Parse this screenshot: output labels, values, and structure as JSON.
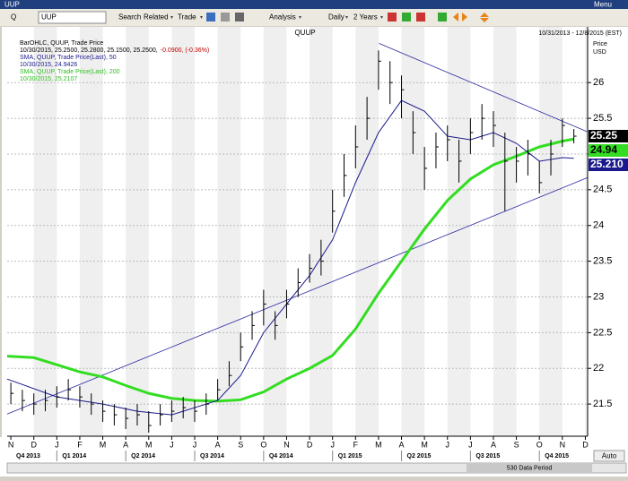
{
  "window": {
    "title": "UUP",
    "menu": "Menu"
  },
  "toolbar": {
    "symbol_prefix": "Q",
    "symbol": "UUP",
    "buttons": [
      "Search",
      "Related",
      "Trade",
      "Analysis",
      "Daily",
      "2 Years"
    ]
  },
  "chart_data": {
    "type": "ohlc",
    "title": "QUUP",
    "date_range": "10/31/2013 - 12/8/2015 (EST)",
    "y_axis_label": [
      "Price",
      "USD"
    ],
    "x": [
      0,
      0.5,
      1,
      1.5,
      2,
      2.5,
      3,
      3.5,
      4,
      4.5,
      5,
      5.5,
      6,
      6.5,
      7,
      7.5,
      8,
      8.5,
      9,
      9.5,
      10,
      10.5,
      11,
      11.5,
      12,
      12.5,
      13,
      13.5,
      14,
      14.5,
      15,
      15.5,
      16,
      16.5,
      17,
      17.5,
      18,
      18.5,
      19,
      19.5,
      20,
      20.5,
      21,
      21.5,
      22,
      22.5,
      23,
      23.5,
      24,
      24.5
    ],
    "series": [
      {
        "name": "BarOHLC, QUUP, Trade Price",
        "detail": "10/30/2015, 25.2500, 25.2800, 25.1500, 25.2500,",
        "change": "-0.0900, (-0.36%)",
        "color": "#000000",
        "last_label": "25.25",
        "values": [
          21.65,
          21.55,
          21.5,
          21.55,
          21.6,
          21.7,
          21.6,
          21.5,
          21.4,
          21.35,
          21.3,
          21.35,
          21.2,
          21.35,
          21.4,
          21.45,
          21.4,
          21.5,
          21.7,
          21.9,
          22.3,
          22.6,
          22.9,
          22.6,
          22.9,
          23.2,
          23.4,
          23.5,
          24.2,
          24.7,
          25.1,
          25.5,
          26.3,
          26.0,
          25.9,
          25.3,
          24.8,
          25.1,
          25.2,
          24.9,
          25.3,
          25.5,
          25.4,
          24.9,
          24.9,
          25.0,
          24.6,
          25.0,
          25.4,
          25.25
        ],
        "high": [
          21.8,
          21.7,
          21.65,
          21.7,
          21.75,
          21.85,
          21.75,
          21.65,
          21.55,
          21.5,
          21.45,
          21.5,
          21.4,
          21.5,
          21.55,
          21.6,
          21.55,
          21.65,
          21.85,
          22.1,
          22.5,
          22.8,
          23.1,
          22.8,
          23.1,
          23.4,
          23.6,
          23.8,
          24.5,
          25.0,
          25.4,
          25.8,
          26.45,
          26.3,
          26.1,
          25.6,
          25.1,
          25.3,
          25.4,
          25.2,
          25.5,
          25.7,
          25.6,
          25.3,
          25.1,
          25.2,
          24.9,
          25.2,
          25.5,
          25.35
        ],
        "low": [
          21.5,
          21.4,
          21.35,
          21.4,
          21.45,
          21.55,
          21.45,
          21.35,
          21.25,
          21.2,
          21.15,
          21.2,
          21.1,
          21.2,
          21.25,
          21.3,
          21.25,
          21.35,
          21.55,
          21.75,
          22.1,
          22.4,
          22.6,
          22.4,
          22.7,
          23.0,
          23.2,
          23.3,
          23.9,
          24.4,
          24.8,
          25.2,
          25.9,
          25.7,
          25.5,
          25.0,
          24.5,
          24.8,
          24.9,
          24.6,
          25.0,
          25.2,
          25.1,
          24.2,
          24.6,
          24.7,
          24.45,
          24.7,
          25.1,
          25.15
        ]
      },
      {
        "name": "SMA, QUUP, Trade Price(Last), 50",
        "detail": "10/30/2015, 24.9426",
        "color": "#1a1a8c",
        "last_label": "24.94",
        "x": [
          -0.16,
          2,
          4,
          5.5,
          7,
          9,
          10,
          11,
          12,
          13,
          14,
          15,
          16,
          17,
          18,
          19,
          20,
          21,
          22,
          23,
          24,
          24.5
        ],
        "values": [
          21.85,
          21.6,
          21.5,
          21.4,
          21.35,
          21.55,
          21.9,
          22.5,
          22.9,
          23.3,
          23.8,
          24.6,
          25.3,
          25.75,
          25.6,
          25.25,
          25.2,
          25.3,
          25.15,
          24.9,
          24.95,
          24.94
        ]
      },
      {
        "name": "SMA, QUUP, Trade Price(Last), 200",
        "detail": "10/30/2015, 25.2107",
        "color": "#33dd22",
        "last_label": "25.210",
        "x": [
          -0.16,
          1,
          2,
          3,
          4,
          5,
          6,
          7,
          8,
          9,
          10,
          11,
          12,
          13,
          14,
          15,
          16,
          17,
          18,
          19,
          20,
          21,
          22,
          23,
          24,
          24.5
        ],
        "values": [
          22.17,
          22.15,
          22.05,
          21.95,
          21.88,
          21.76,
          21.65,
          21.58,
          21.55,
          21.54,
          21.56,
          21.67,
          21.85,
          22.0,
          22.18,
          22.55,
          23.05,
          23.5,
          23.95,
          24.35,
          24.65,
          24.85,
          24.97,
          25.1,
          25.18,
          25.21
        ]
      }
    ],
    "trendlines": [
      {
        "x": [
          16.02,
          25.1
        ],
        "y": [
          26.55,
          25.31
        ]
      },
      {
        "x": [
          -0.16,
          25.1
        ],
        "y": [
          21.36,
          24.67
        ]
      }
    ],
    "xlim": [
      -0.16,
      25.1
    ],
    "xticks": [
      {
        "value": 0,
        "label": "N"
      },
      {
        "value": 1,
        "label": "D"
      },
      {
        "value": 2,
        "label": "J"
      },
      {
        "value": 3,
        "label": "F"
      },
      {
        "value": 4,
        "label": "M"
      },
      {
        "value": 5,
        "label": "A"
      },
      {
        "value": 6,
        "label": "M"
      },
      {
        "value": 7,
        "label": "J"
      },
      {
        "value": 8,
        "label": "J"
      },
      {
        "value": 9,
        "label": "A"
      },
      {
        "value": 10,
        "label": "S"
      },
      {
        "value": 11,
        "label": "O"
      },
      {
        "value": 12,
        "label": "N"
      },
      {
        "value": 13,
        "label": "D"
      },
      {
        "value": 14,
        "label": "J"
      },
      {
        "value": 15,
        "label": "F"
      },
      {
        "value": 16,
        "label": "M"
      },
      {
        "value": 17,
        "label": "A"
      },
      {
        "value": 18,
        "label": "M"
      },
      {
        "value": 19,
        "label": "J"
      },
      {
        "value": 20,
        "label": "J"
      },
      {
        "value": 21,
        "label": "A"
      },
      {
        "value": 22,
        "label": "S"
      },
      {
        "value": 23,
        "label": "O"
      },
      {
        "value": 24,
        "label": "N"
      },
      {
        "value": 25,
        "label": "D"
      }
    ],
    "quarters": [
      {
        "value": -1,
        "label": "Q4 2013"
      },
      {
        "value": 2,
        "label": "Q1 2014"
      },
      {
        "value": 5,
        "label": "Q2 2014"
      },
      {
        "value": 8,
        "label": "Q3 2014"
      },
      {
        "value": 11,
        "label": "Q4 2014"
      },
      {
        "value": 14,
        "label": "Q1 2015"
      },
      {
        "value": 17,
        "label": "Q2 2015"
      },
      {
        "value": 20,
        "label": "Q3 2015"
      },
      {
        "value": 23,
        "label": "Q4 2015"
      }
    ],
    "ylim": [
      21.05,
      26.78
    ],
    "yticks": [
      21.5,
      22,
      22.5,
      23,
      23.5,
      24,
      24.5,
      25,
      25.5,
      26
    ],
    "grid": true,
    "data_period": "530 Data Period",
    "auto": "Auto"
  }
}
